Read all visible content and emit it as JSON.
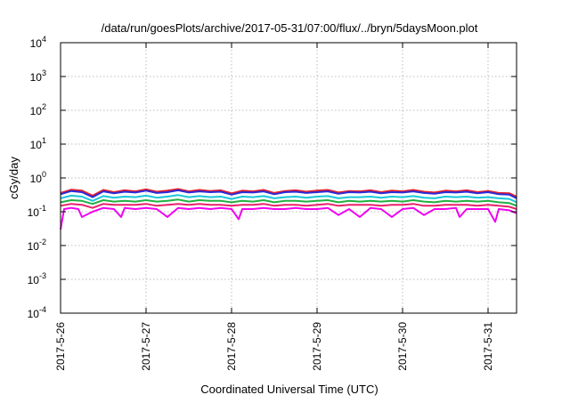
{
  "chart_data": {
    "type": "line",
    "title": "/data/run/goesPlots/archive/2017-05-31/07:00/flux/../bryn/5daysMoon.plot",
    "xlabel": "Coordinated Universal Time (UTC)",
    "ylabel": "cGy/day",
    "y_scale": "log",
    "ylim": [
      0.0001,
      10000
    ],
    "xlim": [
      "2017-05-26T00:00",
      "2017-05-31T08:00"
    ],
    "grid": true,
    "legend": "none",
    "y_ticks": [
      {
        "value": 0.0001,
        "base": "10",
        "exp": "-4"
      },
      {
        "value": 0.001,
        "base": "10",
        "exp": "-3"
      },
      {
        "value": 0.01,
        "base": "10",
        "exp": "-2"
      },
      {
        "value": 0.1,
        "base": "10",
        "exp": "-1"
      },
      {
        "value": 1,
        "base": "10",
        "exp": "0"
      },
      {
        "value": 10,
        "base": "10",
        "exp": "1"
      },
      {
        "value": 100,
        "base": "10",
        "exp": "2"
      },
      {
        "value": 1000,
        "base": "10",
        "exp": "3"
      },
      {
        "value": 10000,
        "base": "10",
        "exp": "4"
      }
    ],
    "x_ticks": [
      {
        "value": "2017-05-26T00:00",
        "label": "2017-5-26"
      },
      {
        "value": "2017-05-27T00:00",
        "label": "2017-5-27"
      },
      {
        "value": "2017-05-28T00:00",
        "label": "2017-5-28"
      },
      {
        "value": "2017-05-29T00:00",
        "label": "2017-5-29"
      },
      {
        "value": "2017-05-30T00:00",
        "label": "2017-5-30"
      },
      {
        "value": "2017-05-31T00:00",
        "label": "2017-5-31"
      }
    ],
    "series": [
      {
        "color": "#e8202a",
        "x": [
          "2017-05-26T00:00",
          "2017-05-26T03:00",
          "2017-05-26T06:00",
          "2017-05-26T09:00",
          "2017-05-26T12:00",
          "2017-05-26T15:00",
          "2017-05-26T18:00",
          "2017-05-26T21:00",
          "2017-05-27T00:00",
          "2017-05-27T03:00",
          "2017-05-27T06:00",
          "2017-05-27T09:00",
          "2017-05-27T12:00",
          "2017-05-27T15:00",
          "2017-05-27T18:00",
          "2017-05-27T21:00",
          "2017-05-28T00:00",
          "2017-05-28T03:00",
          "2017-05-28T06:00",
          "2017-05-28T09:00",
          "2017-05-28T12:00",
          "2017-05-28T15:00",
          "2017-05-28T18:00",
          "2017-05-28T21:00",
          "2017-05-29T00:00",
          "2017-05-29T03:00",
          "2017-05-29T06:00",
          "2017-05-29T09:00",
          "2017-05-29T12:00",
          "2017-05-29T15:00",
          "2017-05-29T18:00",
          "2017-05-29T21:00",
          "2017-05-30T00:00",
          "2017-05-30T03:00",
          "2017-05-30T06:00",
          "2017-05-30T09:00",
          "2017-05-30T12:00",
          "2017-05-30T15:00",
          "2017-05-30T18:00",
          "2017-05-30T21:00",
          "2017-05-31T00:00",
          "2017-05-31T03:00",
          "2017-05-31T06:00",
          "2017-05-31T08:00"
        ],
        "values": [
          0.36,
          0.45,
          0.42,
          0.3,
          0.44,
          0.38,
          0.43,
          0.4,
          0.46,
          0.39,
          0.42,
          0.47,
          0.4,
          0.44,
          0.41,
          0.43,
          0.35,
          0.42,
          0.4,
          0.44,
          0.36,
          0.41,
          0.43,
          0.39,
          0.42,
          0.44,
          0.37,
          0.41,
          0.4,
          0.43,
          0.38,
          0.42,
          0.4,
          0.44,
          0.39,
          0.37,
          0.42,
          0.4,
          0.43,
          0.38,
          0.41,
          0.36,
          0.35,
          0.28
        ]
      },
      {
        "color": "#2a2ad8",
        "x": [
          "2017-05-26T00:00",
          "2017-05-26T03:00",
          "2017-05-26T06:00",
          "2017-05-26T09:00",
          "2017-05-26T12:00",
          "2017-05-26T15:00",
          "2017-05-26T18:00",
          "2017-05-26T21:00",
          "2017-05-27T00:00",
          "2017-05-27T03:00",
          "2017-05-27T06:00",
          "2017-05-27T09:00",
          "2017-05-27T12:00",
          "2017-05-27T15:00",
          "2017-05-27T18:00",
          "2017-05-27T21:00",
          "2017-05-28T00:00",
          "2017-05-28T03:00",
          "2017-05-28T06:00",
          "2017-05-28T09:00",
          "2017-05-28T12:00",
          "2017-05-28T15:00",
          "2017-05-28T18:00",
          "2017-05-28T21:00",
          "2017-05-29T00:00",
          "2017-05-29T03:00",
          "2017-05-29T06:00",
          "2017-05-29T09:00",
          "2017-05-29T12:00",
          "2017-05-29T15:00",
          "2017-05-29T18:00",
          "2017-05-29T21:00",
          "2017-05-30T00:00",
          "2017-05-30T03:00",
          "2017-05-30T06:00",
          "2017-05-30T09:00",
          "2017-05-30T12:00",
          "2017-05-30T15:00",
          "2017-05-30T18:00",
          "2017-05-30T21:00",
          "2017-05-31T00:00",
          "2017-05-31T03:00",
          "2017-05-31T06:00",
          "2017-05-31T08:00"
        ],
        "values": [
          0.33,
          0.41,
          0.38,
          0.27,
          0.4,
          0.35,
          0.39,
          0.37,
          0.42,
          0.36,
          0.38,
          0.43,
          0.37,
          0.4,
          0.38,
          0.39,
          0.32,
          0.38,
          0.37,
          0.4,
          0.33,
          0.38,
          0.39,
          0.36,
          0.38,
          0.4,
          0.34,
          0.38,
          0.37,
          0.39,
          0.35,
          0.38,
          0.37,
          0.4,
          0.36,
          0.34,
          0.38,
          0.37,
          0.39,
          0.35,
          0.38,
          0.33,
          0.32,
          0.25
        ]
      },
      {
        "color": "#18c8d8",
        "x": [
          "2017-05-26T00:00",
          "2017-05-26T03:00",
          "2017-05-26T06:00",
          "2017-05-26T09:00",
          "2017-05-26T12:00",
          "2017-05-26T15:00",
          "2017-05-26T18:00",
          "2017-05-26T21:00",
          "2017-05-27T00:00",
          "2017-05-27T03:00",
          "2017-05-27T06:00",
          "2017-05-27T09:00",
          "2017-05-27T12:00",
          "2017-05-27T15:00",
          "2017-05-27T18:00",
          "2017-05-27T21:00",
          "2017-05-28T00:00",
          "2017-05-28T03:00",
          "2017-05-28T06:00",
          "2017-05-28T09:00",
          "2017-05-28T12:00",
          "2017-05-28T15:00",
          "2017-05-28T18:00",
          "2017-05-28T21:00",
          "2017-05-29T00:00",
          "2017-05-29T03:00",
          "2017-05-29T06:00",
          "2017-05-29T09:00",
          "2017-05-29T12:00",
          "2017-05-29T15:00",
          "2017-05-29T18:00",
          "2017-05-29T21:00",
          "2017-05-30T00:00",
          "2017-05-30T03:00",
          "2017-05-30T06:00",
          "2017-05-30T09:00",
          "2017-05-30T12:00",
          "2017-05-30T15:00",
          "2017-05-30T18:00",
          "2017-05-30T21:00",
          "2017-05-31T00:00",
          "2017-05-31T03:00",
          "2017-05-31T06:00",
          "2017-05-31T08:00"
        ],
        "values": [
          0.25,
          0.3,
          0.28,
          0.21,
          0.29,
          0.26,
          0.28,
          0.27,
          0.3,
          0.26,
          0.28,
          0.31,
          0.27,
          0.29,
          0.27,
          0.28,
          0.24,
          0.28,
          0.27,
          0.29,
          0.25,
          0.27,
          0.28,
          0.26,
          0.28,
          0.29,
          0.25,
          0.27,
          0.27,
          0.28,
          0.26,
          0.28,
          0.27,
          0.29,
          0.26,
          0.25,
          0.28,
          0.27,
          0.28,
          0.26,
          0.27,
          0.25,
          0.24,
          0.19
        ]
      },
      {
        "color": "#20b040",
        "x": [
          "2017-05-26T00:00",
          "2017-05-26T03:00",
          "2017-05-26T06:00",
          "2017-05-26T09:00",
          "2017-05-26T12:00",
          "2017-05-26T15:00",
          "2017-05-26T18:00",
          "2017-05-26T21:00",
          "2017-05-27T00:00",
          "2017-05-27T03:00",
          "2017-05-27T06:00",
          "2017-05-27T09:00",
          "2017-05-27T12:00",
          "2017-05-27T15:00",
          "2017-05-27T18:00",
          "2017-05-27T21:00",
          "2017-05-28T00:00",
          "2017-05-28T03:00",
          "2017-05-28T06:00",
          "2017-05-28T09:00",
          "2017-05-28T12:00",
          "2017-05-28T15:00",
          "2017-05-28T18:00",
          "2017-05-28T21:00",
          "2017-05-29T00:00",
          "2017-05-29T03:00",
          "2017-05-29T06:00",
          "2017-05-29T09:00",
          "2017-05-29T12:00",
          "2017-05-29T15:00",
          "2017-05-29T18:00",
          "2017-05-29T21:00",
          "2017-05-30T00:00",
          "2017-05-30T03:00",
          "2017-05-30T06:00",
          "2017-05-30T09:00",
          "2017-05-30T12:00",
          "2017-05-30T15:00",
          "2017-05-30T18:00",
          "2017-05-30T21:00",
          "2017-05-31T00:00",
          "2017-05-31T03:00",
          "2017-05-31T06:00",
          "2017-05-31T08:00"
        ],
        "values": [
          0.19,
          0.22,
          0.21,
          0.17,
          0.22,
          0.2,
          0.21,
          0.2,
          0.22,
          0.2,
          0.21,
          0.23,
          0.2,
          0.22,
          0.21,
          0.21,
          0.19,
          0.21,
          0.2,
          0.22,
          0.19,
          0.21,
          0.21,
          0.2,
          0.21,
          0.22,
          0.19,
          0.21,
          0.2,
          0.21,
          0.2,
          0.21,
          0.2,
          0.22,
          0.2,
          0.19,
          0.21,
          0.2,
          0.21,
          0.2,
          0.21,
          0.19,
          0.18,
          0.15
        ]
      },
      {
        "color": "#e8206a",
        "x": [
          "2017-05-26T00:00",
          "2017-05-26T03:00",
          "2017-05-26T06:00",
          "2017-05-26T09:00",
          "2017-05-26T12:00",
          "2017-05-26T15:00",
          "2017-05-26T18:00",
          "2017-05-26T21:00",
          "2017-05-27T00:00",
          "2017-05-27T03:00",
          "2017-05-27T06:00",
          "2017-05-27T09:00",
          "2017-05-27T12:00",
          "2017-05-27T15:00",
          "2017-05-27T18:00",
          "2017-05-27T21:00",
          "2017-05-28T00:00",
          "2017-05-28T03:00",
          "2017-05-28T06:00",
          "2017-05-28T09:00",
          "2017-05-28T12:00",
          "2017-05-28T15:00",
          "2017-05-28T18:00",
          "2017-05-28T21:00",
          "2017-05-29T00:00",
          "2017-05-29T03:00",
          "2017-05-29T06:00",
          "2017-05-29T09:00",
          "2017-05-29T12:00",
          "2017-05-29T15:00",
          "2017-05-29T18:00",
          "2017-05-29T21:00",
          "2017-05-30T00:00",
          "2017-05-30T03:00",
          "2017-05-30T06:00",
          "2017-05-30T09:00",
          "2017-05-30T12:00",
          "2017-05-30T15:00",
          "2017-05-30T18:00",
          "2017-05-30T21:00",
          "2017-05-31T00:00",
          "2017-05-31T03:00",
          "2017-05-31T06:00",
          "2017-05-31T08:00"
        ],
        "values": [
          0.15,
          0.17,
          0.16,
          0.13,
          0.17,
          0.16,
          0.16,
          0.16,
          0.17,
          0.15,
          0.16,
          0.17,
          0.16,
          0.17,
          0.16,
          0.16,
          0.15,
          0.16,
          0.16,
          0.17,
          0.15,
          0.16,
          0.16,
          0.15,
          0.16,
          0.17,
          0.15,
          0.16,
          0.16,
          0.16,
          0.15,
          0.16,
          0.16,
          0.17,
          0.15,
          0.15,
          0.16,
          0.16,
          0.16,
          0.15,
          0.16,
          0.15,
          0.14,
          0.12
        ]
      },
      {
        "color": "#f000f0",
        "x": [
          "2017-05-26T00:00",
          "2017-05-26T01:00",
          "2017-05-26T03:00",
          "2017-05-26T05:00",
          "2017-05-26T06:00",
          "2017-05-26T09:00",
          "2017-05-26T12:00",
          "2017-05-26T15:00",
          "2017-05-26T17:00",
          "2017-05-26T18:00",
          "2017-05-26T21:00",
          "2017-05-27T00:00",
          "2017-05-27T03:00",
          "2017-05-27T06:00",
          "2017-05-27T09:00",
          "2017-05-27T12:00",
          "2017-05-27T15:00",
          "2017-05-27T18:00",
          "2017-05-27T21:00",
          "2017-05-28T00:00",
          "2017-05-28T02:00",
          "2017-05-28T03:00",
          "2017-05-28T06:00",
          "2017-05-28T09:00",
          "2017-05-28T12:00",
          "2017-05-28T15:00",
          "2017-05-28T18:00",
          "2017-05-28T21:00",
          "2017-05-29T00:00",
          "2017-05-29T03:00",
          "2017-05-29T06:00",
          "2017-05-29T09:00",
          "2017-05-29T12:00",
          "2017-05-29T15:00",
          "2017-05-29T18:00",
          "2017-05-29T21:00",
          "2017-05-30T00:00",
          "2017-05-30T03:00",
          "2017-05-30T06:00",
          "2017-05-30T09:00",
          "2017-05-30T12:00",
          "2017-05-30T15:00",
          "2017-05-30T16:00",
          "2017-05-30T18:00",
          "2017-05-30T21:00",
          "2017-05-31T00:00",
          "2017-05-31T02:00",
          "2017-05-31T03:00",
          "2017-05-31T06:00",
          "2017-05-31T08:00"
        ],
        "values": [
          0.03,
          0.12,
          0.13,
          0.12,
          0.07,
          0.1,
          0.13,
          0.12,
          0.07,
          0.13,
          0.12,
          0.13,
          0.12,
          0.07,
          0.13,
          0.12,
          0.13,
          0.12,
          0.13,
          0.12,
          0.06,
          0.12,
          0.12,
          0.13,
          0.12,
          0.12,
          0.13,
          0.12,
          0.12,
          0.13,
          0.08,
          0.12,
          0.07,
          0.13,
          0.12,
          0.07,
          0.12,
          0.13,
          0.08,
          0.12,
          0.12,
          0.13,
          0.07,
          0.12,
          0.12,
          0.12,
          0.05,
          0.12,
          0.11,
          0.09
        ]
      }
    ]
  }
}
